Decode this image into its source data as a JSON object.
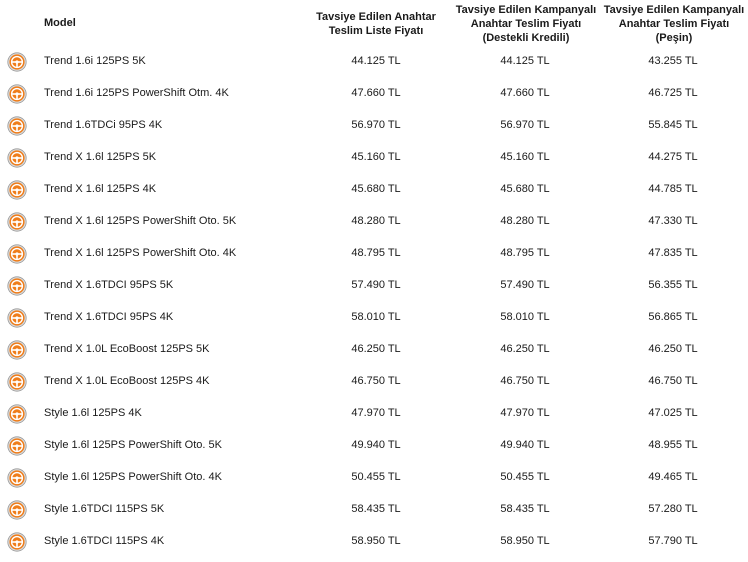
{
  "icon": {
    "name": "steering-wheel-icon",
    "color": "#ef7d1a"
  },
  "table": {
    "headers": {
      "model": "Model",
      "list_price": "Tavsiye Edilen Anahtar\nTeslim Liste Fiyatı",
      "campaign_credit": "Tavsiye Edilen Kampanyalı\nAnahtar Teslim Fiyatı\n(Destekli Kredili)",
      "campaign_cash": "Tavsiye Edilen Kampanyalı\nAnahtar Teslim Fiyatı\n(Peşin)"
    },
    "rows": [
      {
        "model": "Trend 1.6i 125PS 5K",
        "list": "44.125 TL",
        "credit": "44.125 TL",
        "cash": "43.255 TL"
      },
      {
        "model": "Trend 1.6i 125PS PowerShift Otm. 4K",
        "list": "47.660 TL",
        "credit": "47.660 TL",
        "cash": "46.725 TL"
      },
      {
        "model": "Trend 1.6TDCi 95PS 4K",
        "list": "56.970 TL",
        "credit": "56.970 TL",
        "cash": "55.845 TL"
      },
      {
        "model": "Trend X 1.6l 125PS 5K",
        "list": "45.160 TL",
        "credit": "45.160 TL",
        "cash": "44.275 TL"
      },
      {
        "model": "Trend X 1.6l 125PS 4K",
        "list": "45.680 TL",
        "credit": "45.680 TL",
        "cash": "44.785 TL"
      },
      {
        "model": "Trend X 1.6l 125PS PowerShift Oto. 5K",
        "list": "48.280 TL",
        "credit": "48.280 TL",
        "cash": "47.330 TL"
      },
      {
        "model": "Trend X 1.6l 125PS PowerShift Oto. 4K",
        "list": "48.795 TL",
        "credit": "48.795 TL",
        "cash": "47.835 TL"
      },
      {
        "model": "Trend X 1.6TDCI 95PS 5K",
        "list": "57.490 TL",
        "credit": "57.490 TL",
        "cash": "56.355 TL"
      },
      {
        "model": "Trend X 1.6TDCI 95PS 4K",
        "list": "58.010 TL",
        "credit": "58.010 TL",
        "cash": "56.865 TL"
      },
      {
        "model": "Trend X 1.0L EcoBoost 125PS 5K",
        "list": "46.250 TL",
        "credit": "46.250 TL",
        "cash": "46.250 TL"
      },
      {
        "model": "Trend X 1.0L EcoBoost 125PS 4K",
        "list": "46.750 TL",
        "credit": "46.750 TL",
        "cash": "46.750 TL"
      },
      {
        "model": "Style 1.6l 125PS 4K",
        "list": "47.970 TL",
        "credit": "47.970 TL",
        "cash": "47.025 TL"
      },
      {
        "model": "Style 1.6l 125PS PowerShift Oto. 5K",
        "list": "49.940 TL",
        "credit": "49.940 TL",
        "cash": "48.955 TL"
      },
      {
        "model": "Style 1.6l 125PS PowerShift Oto. 4K",
        "list": "50.455 TL",
        "credit": "50.455 TL",
        "cash": "49.465 TL"
      },
      {
        "model": "Style 1.6TDCI 115PS 5K",
        "list": "58.435 TL",
        "credit": "58.435 TL",
        "cash": "57.280 TL"
      },
      {
        "model": "Style 1.6TDCI 115PS 4K",
        "list": "58.950 TL",
        "credit": "58.950 TL",
        "cash": "57.790 TL"
      }
    ]
  }
}
